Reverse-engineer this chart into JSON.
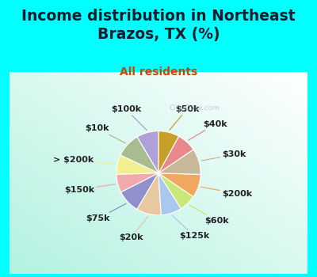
{
  "title": "Income distribution in Northeast\nBrazos, TX (%)",
  "subtitle": "All residents",
  "bg_cyan": "#00FFFF",
  "watermark": "City-Data.com",
  "labels": [
    "$100k",
    "$10k",
    "> $200k",
    "$150k",
    "$75k",
    "$20k",
    "$125k",
    "$60k",
    "$200k",
    "$30k",
    "$40k",
    "$50k"
  ],
  "sizes": [
    8.5,
    9.5,
    7.5,
    7.0,
    9.0,
    9.5,
    8.0,
    6.5,
    9.0,
    10.0,
    7.5,
    8.0
  ],
  "colors": [
    "#b0a0d8",
    "#a8bc90",
    "#f0f090",
    "#f0aab0",
    "#9090cc",
    "#e8c8a0",
    "#a8c8f0",
    "#c8e878",
    "#f0a860",
    "#c8b89a",
    "#e88888",
    "#c8a028"
  ],
  "startangle": 90,
  "title_fontsize": 13.5,
  "subtitle_fontsize": 10,
  "label_fontsize": 8,
  "figsize": [
    4.0,
    3.5
  ],
  "dpi": 100,
  "title_color": "#1a1a2e",
  "subtitle_color": "#cc4400",
  "label_color": "#222222"
}
